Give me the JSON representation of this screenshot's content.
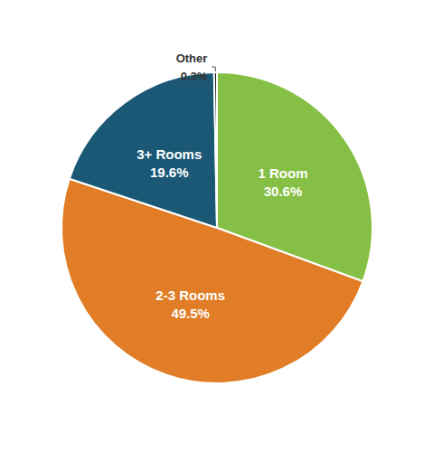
{
  "chart_data": {
    "type": "pie",
    "categories": [
      "1 Room",
      "2-3 Rooms",
      "3+ Rooms",
      "Other"
    ],
    "values": [
      30.6,
      49.5,
      19.6,
      0.3
    ],
    "value_labels": [
      "30.6%",
      "49.5%",
      "19.6%",
      "0.3%"
    ],
    "colors": [
      "#86bf45",
      "#e07d26",
      "#1a5875",
      "#222222"
    ],
    "data_labels": true
  }
}
